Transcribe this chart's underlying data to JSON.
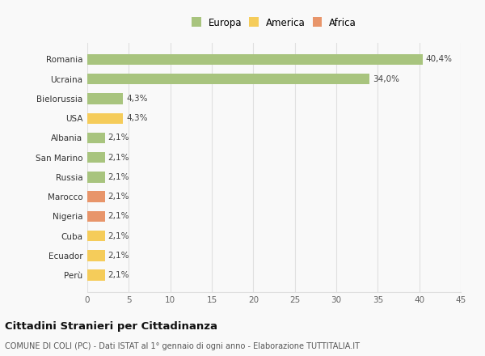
{
  "categories": [
    "Perù",
    "Ecuador",
    "Cuba",
    "Nigeria",
    "Marocco",
    "Russia",
    "San Marino",
    "Albania",
    "USA",
    "Bielorussia",
    "Ucraina",
    "Romania"
  ],
  "values": [
    2.1,
    2.1,
    2.1,
    2.1,
    2.1,
    2.1,
    2.1,
    2.1,
    4.3,
    4.3,
    34.0,
    40.4
  ],
  "labels": [
    "2,1%",
    "2,1%",
    "2,1%",
    "2,1%",
    "2,1%",
    "2,1%",
    "2,1%",
    "2,1%",
    "4,3%",
    "4,3%",
    "34,0%",
    "40,4%"
  ],
  "colors": [
    "#f5cc5a",
    "#f5cc5a",
    "#f5cc5a",
    "#e8956a",
    "#e8956a",
    "#a8c47e",
    "#a8c47e",
    "#a8c47e",
    "#f5cc5a",
    "#a8c47e",
    "#a8c47e",
    "#a8c47e"
  ],
  "legend": [
    {
      "label": "Europa",
      "color": "#a8c47e"
    },
    {
      "label": "America",
      "color": "#f5cc5a"
    },
    {
      "label": "Africa",
      "color": "#e8956a"
    }
  ],
  "title": "Cittadini Stranieri per Cittadinanza",
  "subtitle": "COMUNE DI COLI (PC) - Dati ISTAT al 1° gennaio di ogni anno - Elaborazione TUTTITALIA.IT",
  "xlim": [
    0,
    45
  ],
  "xticks": [
    0,
    5,
    10,
    15,
    20,
    25,
    30,
    35,
    40,
    45
  ],
  "bg_color": "#f9f9f9",
  "grid_color": "#e0e0e0",
  "bar_height": 0.55
}
